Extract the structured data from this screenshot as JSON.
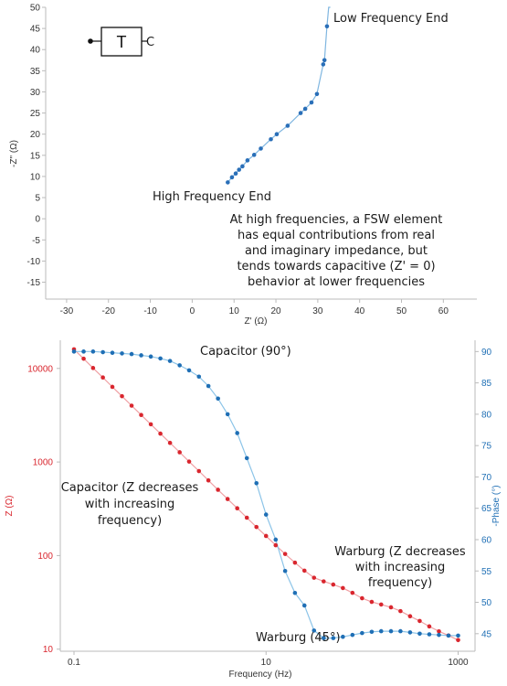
{
  "colors": {
    "nyquist_series": "#2a6fb8",
    "magnitude_series": "#d9262e",
    "phase_series": "#1f6fb5",
    "axis": "#bbbbbb",
    "text": "#1a1a1a"
  },
  "circuit_symbol": {
    "label": "T",
    "right_terminal": "C"
  },
  "chart_data": [
    {
      "type": "scatter",
      "xlabel": "Z' (Ω)",
      "ylabel": "-Z\" (Ω)",
      "xlim": [
        -35,
        68
      ],
      "ylim": [
        -19,
        50
      ],
      "xticks": [
        "-30",
        "-20",
        "-10",
        "0",
        "10",
        "20",
        "30",
        "40",
        "50",
        "60"
      ],
      "yticks": [
        "-15",
        "-10",
        "-5",
        "0",
        "5",
        "10",
        "15",
        "20",
        "25",
        "30",
        "35",
        "40",
        "45",
        "50"
      ],
      "series": [
        {
          "x": [
            8.5,
            9.5,
            10.4,
            11.2,
            12.0,
            13.2,
            14.8,
            16.4,
            18.8,
            20.2,
            22.8,
            25.9,
            27.0,
            28.5,
            29.8,
            31.3,
            31.6,
            32.2
          ],
          "y": [
            8.6,
            9.8,
            10.7,
            11.6,
            12.4,
            13.8,
            15.1,
            16.6,
            18.8,
            20.0,
            22.0,
            25.0,
            26.0,
            27.5,
            29.5,
            36.5,
            37.5,
            45.5
          ]
        }
      ],
      "annotations": {
        "low_freq": "Low Frequency End",
        "high_freq": "High Frequency End",
        "note_lines": [
          "At high frequencies, a FSW element",
          "has equal contributions from real",
          "and imaginary impedance, but",
          "tends towards capacitive (Z' = 0)",
          "behavior at lower frequencies"
        ]
      }
    },
    {
      "type": "line",
      "xlabel": "Frequency (Hz)",
      "ylabel_left": "Z (Ω)",
      "ylabel_right": "-Phase (°)",
      "x_scale": "log",
      "y_left_scale": "log",
      "xlim": [
        0.072,
        1500
      ],
      "y_left_lim": [
        9.5,
        20000
      ],
      "y_right_lim": [
        42.2,
        91.8
      ],
      "xticks": [
        "0.1",
        "10",
        "1000"
      ],
      "y_left_ticks": [
        "10",
        "100",
        "1000",
        "10000"
      ],
      "y_right_ticks": [
        "45",
        "50",
        "55",
        "60",
        "65",
        "70",
        "75",
        "80",
        "85",
        "90"
      ],
      "series": [
        {
          "name": "Z",
          "axis": "left",
          "x": [
            0.1,
            0.126,
            0.158,
            0.2,
            0.251,
            0.316,
            0.398,
            0.501,
            0.631,
            0.794,
            1.0,
            1.26,
            1.58,
            2.0,
            2.51,
            3.16,
            3.98,
            5.01,
            6.31,
            7.94,
            10.0,
            12.6,
            15.8,
            20.0,
            25.1,
            31.6,
            39.8,
            50.1,
            63.1,
            79.4,
            100,
            126,
            158,
            200,
            251,
            316,
            398,
            501,
            631,
            794,
            1000
          ],
          "y": [
            16000,
            12700,
            10100,
            8000,
            6350,
            5050,
            4000,
            3180,
            2530,
            2010,
            1600,
            1270,
            1010,
            800,
            636,
            505,
            402,
            320,
            254,
            202,
            162,
            129,
            104,
            84,
            69,
            58,
            53,
            49,
            45,
            40,
            35,
            32,
            30,
            28,
            25.5,
            22.5,
            20,
            17.5,
            15.5,
            14,
            12.5
          ]
        },
        {
          "name": "Phase",
          "axis": "right",
          "x": [
            0.1,
            0.126,
            0.158,
            0.2,
            0.251,
            0.316,
            0.398,
            0.501,
            0.631,
            0.794,
            1.0,
            1.26,
            1.58,
            2.0,
            2.51,
            3.16,
            3.98,
            5.01,
            6.31,
            7.94,
            10.0,
            12.6,
            15.8,
            20.0,
            25.1,
            31.6,
            39.8,
            50.1,
            63.1,
            79.4,
            100,
            126,
            158,
            200,
            251,
            316,
            398,
            501,
            631,
            794,
            1000
          ],
          "y": [
            90.0,
            90.0,
            90.0,
            89.9,
            89.8,
            89.7,
            89.6,
            89.4,
            89.2,
            88.9,
            88.5,
            87.8,
            87.0,
            86.0,
            84.5,
            82.5,
            80.0,
            77.0,
            73.0,
            69.0,
            64.0,
            60.0,
            55.0,
            51.5,
            49.5,
            45.5,
            44.3,
            44.3,
            44.5,
            44.8,
            45.1,
            45.3,
            45.4,
            45.4,
            45.4,
            45.2,
            45.0,
            44.9,
            44.8,
            44.7,
            44.7
          ]
        }
      ],
      "annotations": {
        "capacitor_phase": "Capacitor  (90°)",
        "capacitor_z_lines": [
          "Capacitor  (Z decreases",
          "with increasing",
          "frequency)"
        ],
        "warburg_z_lines": [
          "Warburg  (Z decreases",
          "with increasing",
          "frequency)"
        ],
        "warburg_phase": "Warburg (45°)"
      }
    }
  ]
}
